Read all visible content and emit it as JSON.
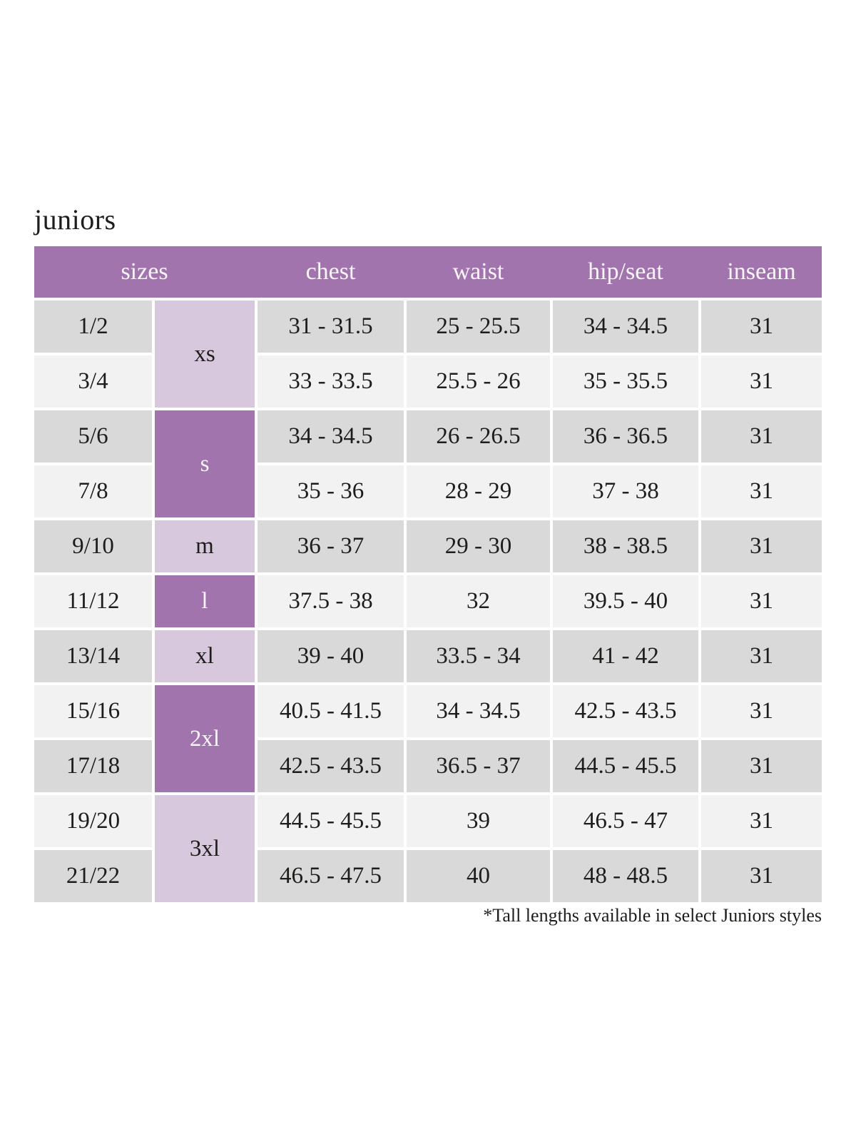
{
  "title": "juniors",
  "footnote": "*Tall lengths available in select Juniors styles",
  "colors": {
    "header_purple": "#a174ae",
    "light_purple": "#d7c8de",
    "row_gray_dark": "#d9d9d9",
    "row_gray_light": "#f2f2f2",
    "header_text": "#faf5fb",
    "body_text": "#1d1d1b"
  },
  "table": {
    "headers": [
      "sizes",
      "chest",
      "waist",
      "hip/seat",
      "inseam"
    ],
    "size_groups": [
      {
        "label": "xs",
        "rows": 2,
        "shade": "light"
      },
      {
        "label": "s",
        "rows": 2,
        "shade": "dark"
      },
      {
        "label": "m",
        "rows": 1,
        "shade": "light"
      },
      {
        "label": "l",
        "rows": 1,
        "shade": "dark"
      },
      {
        "label": "xl",
        "rows": 1,
        "shade": "light"
      },
      {
        "label": "2xl",
        "rows": 2,
        "shade": "dark"
      },
      {
        "label": "3xl",
        "rows": 2,
        "shade": "light"
      }
    ],
    "rows": [
      {
        "size": "1/2",
        "chest": "31 - 31.5",
        "waist": "25 - 25.5",
        "hip_seat": "34 - 34.5",
        "inseam": "31"
      },
      {
        "size": "3/4",
        "chest": "33 - 33.5",
        "waist": "25.5 - 26",
        "hip_seat": "35 - 35.5",
        "inseam": "31"
      },
      {
        "size": "5/6",
        "chest": "34 - 34.5",
        "waist": "26 - 26.5",
        "hip_seat": "36 - 36.5",
        "inseam": "31"
      },
      {
        "size": "7/8",
        "chest": "35 - 36",
        "waist": "28 - 29",
        "hip_seat": "37 - 38",
        "inseam": "31"
      },
      {
        "size": "9/10",
        "chest": "36 - 37",
        "waist": "29 - 30",
        "hip_seat": "38 - 38.5",
        "inseam": "31"
      },
      {
        "size": "11/12",
        "chest": "37.5 - 38",
        "waist": "32",
        "hip_seat": "39.5 - 40",
        "inseam": "31"
      },
      {
        "size": "13/14",
        "chest": "39 - 40",
        "waist": "33.5 - 34",
        "hip_seat": "41 - 42",
        "inseam": "31"
      },
      {
        "size": "15/16",
        "chest": "40.5 - 41.5",
        "waist": "34 - 34.5",
        "hip_seat": "42.5 - 43.5",
        "inseam": "31"
      },
      {
        "size": "17/18",
        "chest": "42.5 - 43.5",
        "waist": "36.5 - 37",
        "hip_seat": "44.5 - 45.5",
        "inseam": "31"
      },
      {
        "size": "19/20",
        "chest": "44.5 - 45.5",
        "waist": "39",
        "hip_seat": "46.5 - 47",
        "inseam": "31"
      },
      {
        "size": "21/22",
        "chest": "46.5 - 47.5",
        "waist": "40",
        "hip_seat": "48 - 48.5",
        "inseam": "31"
      }
    ]
  }
}
